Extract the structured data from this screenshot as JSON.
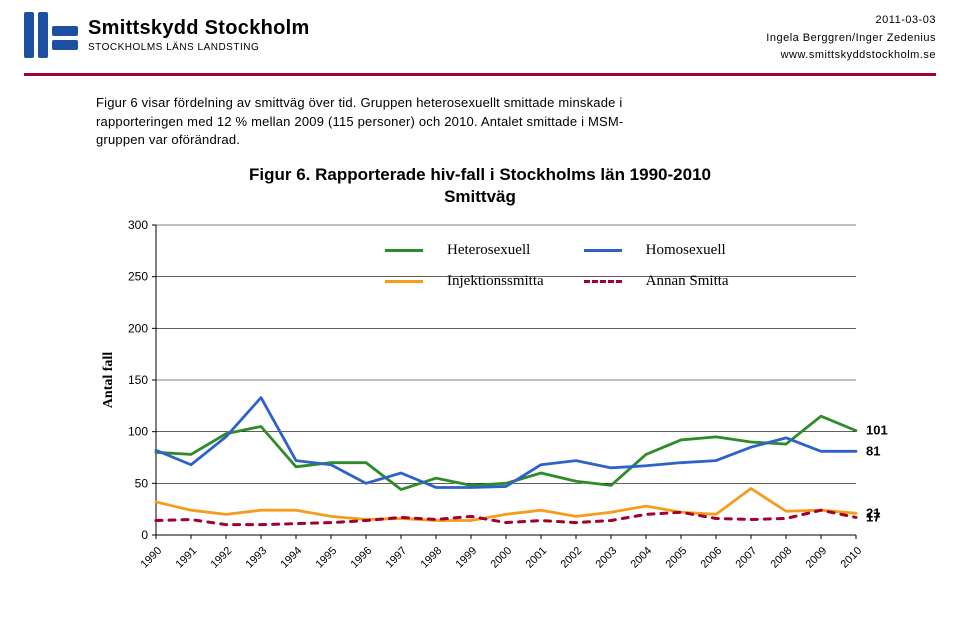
{
  "header": {
    "brand_title": "Smittskydd Stockholm",
    "brand_sub": "STOCKHOLMS LÄNS LANDSTING",
    "date": "2011-03-03",
    "authors": "Ingela Berggren/Inger Zedenius",
    "site": "www.smittskyddstockholm.se",
    "brand_color": "#1c4fa1",
    "divider_color": "#a3002f"
  },
  "intro": {
    "text": "Figur 6 visar fördelning av smittväg över tid. Gruppen heterosexuellt smittade minskade i rapporteringen med 12 % mellan 2009 (115 personer) och 2010. Antalet smittade i MSM-gruppen var oförändrad."
  },
  "chart": {
    "title_line1": "Figur 6. Rapporterade hiv-fall i Stockholms län 1990-2010",
    "title_line2": "Smittväg",
    "y_label": "Antal fall",
    "y_label_fontfamily": "Times New Roman, Times, serif",
    "ylim": [
      0,
      300
    ],
    "ytick_step": 50,
    "background_color": "#ffffff",
    "grid_color": "#000000",
    "years": [
      "1990",
      "1991",
      "1992",
      "1993",
      "1994",
      "1995",
      "1996",
      "1997",
      "1998",
      "1999",
      "2000",
      "2001",
      "2002",
      "2003",
      "2004",
      "2005",
      "2006",
      "2007",
      "2008",
      "2009",
      "2010"
    ],
    "series": [
      {
        "name": "Heterosexuell",
        "color": "#2e8b28",
        "width": 2.8,
        "dash": "none",
        "values": [
          80,
          78,
          98,
          105,
          66,
          70,
          70,
          44,
          55,
          48,
          50,
          60,
          52,
          48,
          78,
          92,
          95,
          90,
          88,
          115,
          101
        ]
      },
      {
        "name": "Homosexuell",
        "color": "#2e62c9",
        "width": 2.8,
        "dash": "none",
        "values": [
          82,
          68,
          95,
          133,
          72,
          68,
          50,
          60,
          46,
          46,
          47,
          68,
          72,
          65,
          67,
          70,
          72,
          85,
          94,
          81,
          81
        ]
      },
      {
        "name": "Injektionssmitta",
        "color": "#f59c1a",
        "width": 2.8,
        "dash": "none",
        "values": [
          32,
          24,
          20,
          24,
          24,
          18,
          15,
          16,
          14,
          14,
          20,
          24,
          18,
          22,
          28,
          22,
          20,
          45,
          23,
          24,
          21
        ]
      },
      {
        "name": "Annan Smitta",
        "color": "#a3002f",
        "width": 3,
        "dash": "6,7",
        "values": [
          14,
          15,
          10,
          10,
          11,
          12,
          14,
          17,
          15,
          18,
          12,
          14,
          12,
          14,
          20,
          22,
          16,
          15,
          16,
          24,
          17
        ]
      }
    ],
    "end_labels": [
      {
        "value": "101",
        "y": 101,
        "color": "#000000"
      },
      {
        "value": "81",
        "y": 81,
        "color": "#000000"
      },
      {
        "value": "21",
        "y": 21,
        "color": "#000000"
      },
      {
        "value": "17",
        "y": 17,
        "color": "#000000"
      }
    ],
    "legend": {
      "items": [
        "Heterosexuell",
        "Homosexuell",
        "Injektionssmitta",
        "Annan Smitta"
      ]
    },
    "x_label_fontsize": 11,
    "y_tick_fontsize": 12
  }
}
